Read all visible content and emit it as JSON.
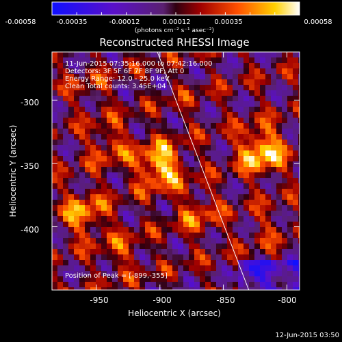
{
  "colorbar": {
    "ticks": [
      "-0.00058",
      "-0.00035",
      "-0.00012",
      "0.00012",
      "0.00035",
      "0.00058"
    ],
    "units": "(photons cm⁻² s⁻¹ asec⁻²)"
  },
  "title": "Reconstructed RHESSI Image",
  "info": {
    "time_range": "11-Jun-2015 07:35:16.000 to 07:42:16.000",
    "detectors": "Detectors: 3F 5F 6F 7F 8F 9F, Att 0",
    "energy": "Energy Range: 12.0 - 25.0 keV",
    "method": "Clean    Total counts: 3.45E+04"
  },
  "peak_label": "Position of Peak = [-899,-355]",
  "timestamp": "12-Jun-2015 03:50",
  "colors": {
    "background": "#000000",
    "frame": "#ffffff"
  },
  "chart_data": {
    "type": "heatmap",
    "title": "Reconstructed RHESSI Image",
    "xlabel": "Heliocentric X (arcsec)",
    "ylabel": "Heliocentric Y (arcsec)",
    "xlim": [
      -985,
      -790
    ],
    "ylim": [
      -450,
      -262
    ],
    "x_ticks": [
      "-950",
      "-900",
      "-850",
      "-800"
    ],
    "y_ticks": [
      "-300",
      "-350",
      "-400"
    ],
    "colorbar_range": [
      -0.00058,
      0.00058
    ],
    "colormap": "blue-purple-red-yellow-white",
    "limb_line": {
      "x": [
        -902,
        -830
      ],
      "y": [
        -262,
        -450
      ]
    },
    "peak": {
      "x": -899,
      "y": -355
    },
    "bright_sources": [
      {
        "x": -900,
        "y": -352,
        "level": 0.95
      },
      {
        "x": -820,
        "y": -340,
        "level": 0.95
      },
      {
        "x": -960,
        "y": -390,
        "level": 0.8
      },
      {
        "x": -940,
        "y": -335,
        "level": 0.7
      },
      {
        "x": -870,
        "y": -390,
        "level": 0.7
      },
      {
        "x": -815,
        "y": -400,
        "level": 0.6
      },
      {
        "x": -930,
        "y": -420,
        "level": 0.65
      },
      {
        "x": -880,
        "y": -300,
        "level": 0.55
      },
      {
        "x": -955,
        "y": -290,
        "level": 0.6
      }
    ]
  }
}
